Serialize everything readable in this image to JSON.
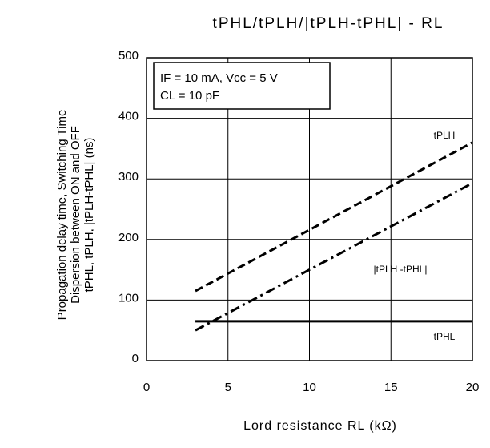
{
  "chart_data": {
    "type": "line",
    "title": "tPHL/tPLH/|tPLH-tPHL| - RL",
    "y_label": [
      "Propagation delay time, Switching Time",
      "Dispersion between ON and OFF",
      "tPHL, tPLH, |tPLH-tPHL| (ns)"
    ],
    "x_label": "Lord resistance RL (kΩ)",
    "annotations": [
      "IF = 10 mA, Vcc = 5 V",
      "CL = 10 pF"
    ],
    "x": [
      3,
      20
    ],
    "series": [
      {
        "name": "tPLH",
        "color": "#000000",
        "linestyle": "dashed",
        "values": [
          115,
          360
        ]
      },
      {
        "name": "|tPLH -tPHL|",
        "color": "#000000",
        "linestyle": "dashdot",
        "values": [
          50,
          293
        ]
      },
      {
        "name": "tPHL",
        "color": "#000000",
        "linestyle": "solid",
        "values": [
          65,
          65
        ]
      }
    ],
    "xlim": [
      0,
      20
    ],
    "xticks": [
      0,
      5,
      10,
      15,
      20
    ],
    "ylim": [
      0,
      500
    ],
    "yticks": [
      0,
      100,
      200,
      300,
      400,
      500
    ],
    "grid": true
  }
}
